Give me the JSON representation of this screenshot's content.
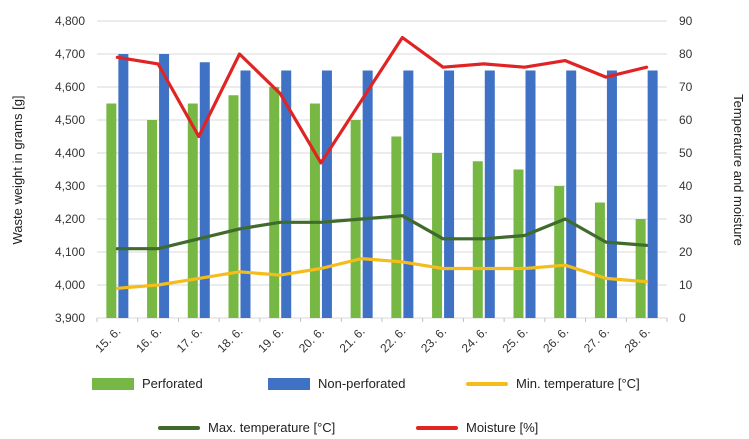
{
  "chart_data": {
    "type": "bar",
    "categories": [
      "15. 6.",
      "16. 6.",
      "17. 6.",
      "18. 6.",
      "19. 6.",
      "20. 6.",
      "21. 6.",
      "22. 6.",
      "23. 6.",
      "24. 6.",
      "25. 6.",
      "26. 6.",
      "27. 6.",
      "28. 6."
    ],
    "bar_series": [
      {
        "name": "Perforated",
        "color": "#76b843",
        "values": [
          4550,
          4500,
          4550,
          4575,
          4600,
          4550,
          4500,
          4450,
          4400,
          4375,
          4350,
          4300,
          4250,
          4200
        ]
      },
      {
        "name": "Non-perforated",
        "color": "#3f72c4",
        "values": [
          4700,
          4700,
          4675,
          4650,
          4650,
          4650,
          4650,
          4650,
          4650,
          4650,
          4650,
          4650,
          4650,
          4650
        ]
      }
    ],
    "line_series": [
      {
        "name": "Min. temperature [°C]",
        "color": "#f5bd1b",
        "values": [
          9,
          10,
          12,
          14,
          13,
          15,
          18,
          17,
          15,
          15,
          15,
          16,
          12,
          11
        ]
      },
      {
        "name": "Max. temperature [°C]",
        "color": "#3f6b2d",
        "values": [
          21,
          21,
          24,
          27,
          29,
          29,
          30,
          31,
          24,
          24,
          25,
          30,
          23,
          22
        ]
      },
      {
        "name": "Moisture [%]",
        "color": "#e02424",
        "values": [
          79,
          77,
          55,
          80,
          68,
          47,
          66,
          85,
          76,
          77,
          76,
          78,
          73,
          76
        ]
      }
    ],
    "ylabel": "Waste weight in grams [g]",
    "y2label": "Temperature and moisture",
    "ylim": [
      3900,
      4800
    ],
    "y2lim": [
      0,
      90
    ],
    "yticks": [
      "3,900",
      "4,000",
      "4,100",
      "4,200",
      "4,300",
      "4,400",
      "4,500",
      "4,600",
      "4,700",
      "4,800"
    ],
    "y2ticks": [
      "0",
      "10",
      "20",
      "30",
      "40",
      "50",
      "60",
      "70",
      "80",
      "90"
    ],
    "grid": true,
    "legend_placement": "bottom"
  }
}
